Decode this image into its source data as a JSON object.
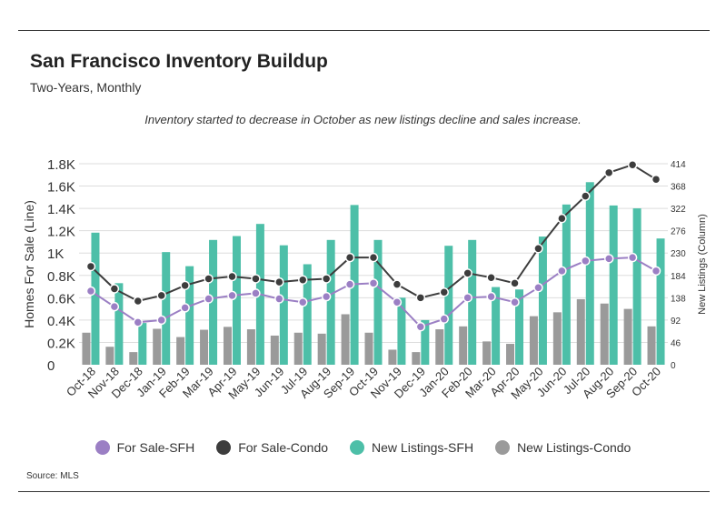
{
  "header": {
    "title": "San Francisco Inventory Buildup",
    "subtitle": "Two-Years, Monthly",
    "annotation": "Inventory started to decrease in October as new listings decline and sales increase.",
    "source": "Source:  MLS"
  },
  "colors": {
    "sfh_line": "#9b7fc4",
    "condo_line": "#3d3d3d",
    "sfh_column": "#4dbfa8",
    "condo_column": "#9a9a9a",
    "grid": "#dddddd"
  },
  "chart_data": {
    "type": "bar",
    "title": "San Francisco Inventory Buildup",
    "subtitle": "Two-Years, Monthly",
    "categories": [
      "Oct-18",
      "Nov-18",
      "Dec-18",
      "Jan-19",
      "Feb-19",
      "Mar-19",
      "Apr-19",
      "May-19",
      "Jun-19",
      "Jul-19",
      "Aug-19",
      "Sep-19",
      "Oct-19",
      "Nov-19",
      "Dec-19",
      "Jan-20",
      "Feb-20",
      "Mar-20",
      "Apr-20",
      "May-20",
      "Jun-20",
      "Jul-20",
      "Aug-20",
      "Sep-20",
      "Oct-20"
    ],
    "ylabel_left": "Homes For Sale (Line)",
    "ylabel_right": "New Listings (Column)",
    "ylim_left": [
      0,
      1800
    ],
    "ylim_right": [
      0,
      414
    ],
    "left_ticks": [
      "0",
      "0.2K",
      "0.4K",
      "0.6K",
      "0.8K",
      "1K",
      "1.2K",
      "1.4K",
      "1.6K",
      "1.8K"
    ],
    "right_ticks": [
      "0",
      "46",
      "92",
      "138",
      "184",
      "230",
      "276",
      "322",
      "368",
      "414"
    ],
    "legend": [
      "For Sale-SFH",
      "For Sale-Condo",
      "New Listings-SFH",
      "New Listings-Condo"
    ],
    "legend_position": "bottom",
    "series": [
      {
        "name": "For Sale-SFH",
        "kind": "line",
        "axis": "left",
        "values": [
          660,
          520,
          380,
          400,
          510,
          590,
          620,
          640,
          590,
          560,
          610,
          720,
          730,
          560,
          340,
          410,
          600,
          610,
          560,
          690,
          840,
          930,
          950,
          960,
          840
        ]
      },
      {
        "name": "For Sale-Condo",
        "kind": "line",
        "axis": "left",
        "values": [
          880,
          680,
          570,
          620,
          710,
          770,
          790,
          770,
          740,
          760,
          770,
          960,
          960,
          720,
          600,
          650,
          820,
          780,
          730,
          1040,
          1310,
          1510,
          1720,
          1790,
          1660
        ]
      },
      {
        "name": "New Listings-SFH",
        "kind": "column",
        "axis": "right",
        "values": [
          272,
          168,
          86,
          232,
          203,
          257,
          265,
          290,
          246,
          207,
          257,
          329,
          257,
          138,
          92,
          245,
          257,
          160,
          155,
          264,
          330,
          376,
          328,
          322,
          260
        ]
      },
      {
        "name": "New Listings-Condo",
        "kind": "column",
        "axis": "right",
        "values": [
          66,
          37,
          26,
          74,
          57,
          72,
          78,
          73,
          60,
          66,
          64,
          104,
          66,
          31,
          26,
          73,
          79,
          48,
          43,
          100,
          108,
          135,
          126,
          115,
          79
        ]
      }
    ]
  }
}
